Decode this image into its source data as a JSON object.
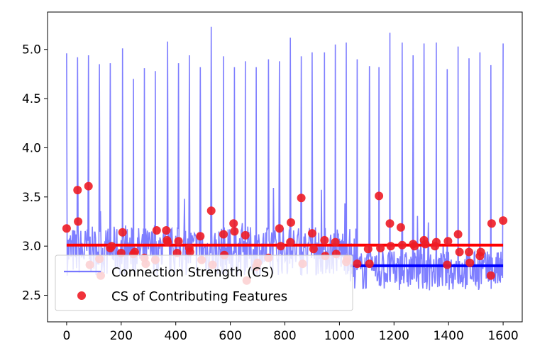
{
  "chart_data": {
    "type": "line",
    "title": "",
    "xlabel": "",
    "ylabel": "",
    "xlim": [
      -70,
      1670
    ],
    "ylim": [
      2.23,
      5.38
    ],
    "xticks": [
      0,
      200,
      400,
      600,
      800,
      1000,
      1200,
      1400,
      1600
    ],
    "yticks": [
      2.5,
      3.0,
      3.5,
      4.0,
      4.5,
      5.0
    ],
    "ytick_labels": [
      "2.5",
      "3.0",
      "3.5",
      "4.0",
      "4.5",
      "5.0"
    ],
    "grid": false,
    "legend_position": "lower-left",
    "colors": {
      "cs_line": "#7777ff",
      "cs_mean": "#0000ff",
      "contrib_points": "#ee1c25",
      "contrib_mean": "#ff0000"
    },
    "series": [
      {
        "name": "Connection Strength (CS)",
        "kind": "line",
        "peaks": [
          {
            "x": 0,
            "y": 4.96
          },
          {
            "x": 40,
            "y": 4.92
          },
          {
            "x": 80,
            "y": 4.94
          },
          {
            "x": 120,
            "y": 4.85
          },
          {
            "x": 160,
            "y": 4.86
          },
          {
            "x": 205,
            "y": 5.01
          },
          {
            "x": 245,
            "y": 4.7
          },
          {
            "x": 285,
            "y": 4.81
          },
          {
            "x": 325,
            "y": 4.78
          },
          {
            "x": 370,
            "y": 5.08
          },
          {
            "x": 410,
            "y": 4.86
          },
          {
            "x": 450,
            "y": 4.94
          },
          {
            "x": 490,
            "y": 4.82
          },
          {
            "x": 530,
            "y": 5.23
          },
          {
            "x": 575,
            "y": 4.93
          },
          {
            "x": 615,
            "y": 4.82
          },
          {
            "x": 655,
            "y": 4.88
          },
          {
            "x": 695,
            "y": 4.82
          },
          {
            "x": 740,
            "y": 4.9
          },
          {
            "x": 780,
            "y": 4.88
          },
          {
            "x": 820,
            "y": 5.12
          },
          {
            "x": 860,
            "y": 4.93
          },
          {
            "x": 900,
            "y": 4.97
          },
          {
            "x": 945,
            "y": 4.97
          },
          {
            "x": 985,
            "y": 5.05
          },
          {
            "x": 1025,
            "y": 5.07
          },
          {
            "x": 1065,
            "y": 4.9
          },
          {
            "x": 1110,
            "y": 4.83
          },
          {
            "x": 1145,
            "y": 4.82
          },
          {
            "x": 1185,
            "y": 5.17
          },
          {
            "x": 1230,
            "y": 5.07
          },
          {
            "x": 1270,
            "y": 4.94
          },
          {
            "x": 1310,
            "y": 5.06
          },
          {
            "x": 1355,
            "y": 5.07
          },
          {
            "x": 1395,
            "y": 4.8
          },
          {
            "x": 1435,
            "y": 5.03
          },
          {
            "x": 1475,
            "y": 4.91
          },
          {
            "x": 1515,
            "y": 4.97
          },
          {
            "x": 1555,
            "y": 4.84
          },
          {
            "x": 1600,
            "y": 5.06
          }
        ],
        "mean": 2.8,
        "mean_line_range": [
          1040,
          1600
        ],
        "min_value": 2.42
      },
      {
        "name": "CS of Contributing Features",
        "kind": "scatter",
        "points": [
          [
            0,
            3.18
          ],
          [
            40,
            3.57
          ],
          [
            42,
            3.25
          ],
          [
            80,
            3.61
          ],
          [
            85,
            2.81
          ],
          [
            120,
            2.87
          ],
          [
            125,
            2.7
          ],
          [
            160,
            2.98
          ],
          [
            165,
            3.0
          ],
          [
            200,
            2.93
          ],
          [
            205,
            3.14
          ],
          [
            245,
            2.92
          ],
          [
            250,
            2.94
          ],
          [
            285,
            2.88
          ],
          [
            290,
            2.82
          ],
          [
            325,
            2.86
          ],
          [
            330,
            3.16
          ],
          [
            365,
            3.16
          ],
          [
            368,
            3.06
          ],
          [
            370,
            3.04
          ],
          [
            405,
            2.93
          ],
          [
            410,
            3.05
          ],
          [
            450,
            2.98
          ],
          [
            452,
            2.94
          ],
          [
            490,
            3.1
          ],
          [
            495,
            2.86
          ],
          [
            530,
            3.36
          ],
          [
            535,
            2.81
          ],
          [
            575,
            3.12
          ],
          [
            578,
            2.91
          ],
          [
            612,
            3.23
          ],
          [
            615,
            3.15
          ],
          [
            655,
            3.11
          ],
          [
            660,
            2.65
          ],
          [
            695,
            2.79
          ],
          [
            700,
            2.83
          ],
          [
            740,
            2.88
          ],
          [
            780,
            3.18
          ],
          [
            785,
            3.0
          ],
          [
            820,
            3.04
          ],
          [
            822,
            3.24
          ],
          [
            860,
            3.49
          ],
          [
            865,
            2.82
          ],
          [
            900,
            3.13
          ],
          [
            905,
            2.97
          ],
          [
            945,
            3.06
          ],
          [
            948,
            2.9
          ],
          [
            985,
            3.04
          ],
          [
            988,
            2.92
          ],
          [
            1025,
            2.84
          ],
          [
            1028,
            2.87
          ],
          [
            1065,
            2.82
          ],
          [
            1105,
            2.97
          ],
          [
            1110,
            2.82
          ],
          [
            1145,
            3.51
          ],
          [
            1150,
            2.98
          ],
          [
            1185,
            3.23
          ],
          [
            1188,
            3.0
          ],
          [
            1225,
            3.19
          ],
          [
            1230,
            3.01
          ],
          [
            1270,
            3.02
          ],
          [
            1275,
            3.0
          ],
          [
            1310,
            3.06
          ],
          [
            1315,
            3.02
          ],
          [
            1350,
            3.0
          ],
          [
            1355,
            3.04
          ],
          [
            1395,
            2.81
          ],
          [
            1398,
            3.05
          ],
          [
            1435,
            3.12
          ],
          [
            1440,
            2.94
          ],
          [
            1475,
            2.94
          ],
          [
            1478,
            2.83
          ],
          [
            1515,
            2.9
          ],
          [
            1518,
            2.94
          ],
          [
            1555,
            2.7
          ],
          [
            1558,
            3.23
          ],
          [
            1600,
            3.26
          ]
        ],
        "mean": 3.01
      }
    ]
  }
}
